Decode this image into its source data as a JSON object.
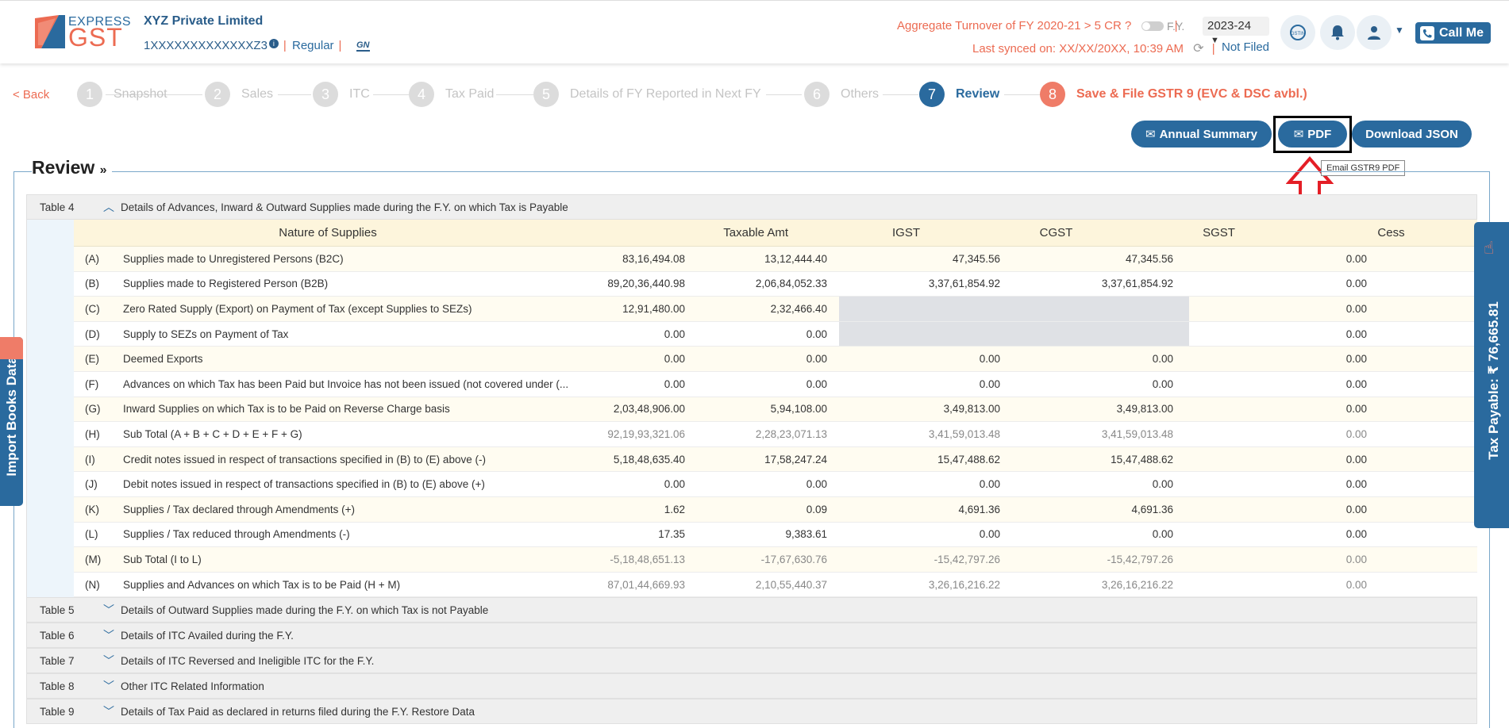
{
  "header": {
    "logo_express": "EXPRESS",
    "logo_gst": "GST",
    "company_name": "XYZ Private Limited",
    "gstin": "1XXXXXXXXXXXXXZ3",
    "taxpayer_type": "Regular",
    "turnover_text": "Aggregate Turnover of FY 2020-21 > 5 CR ?",
    "fy_label": "F.Y.",
    "fy_value": "2023-24",
    "last_synced": "Last synced on: XX/XX/20XX, 10:39 AM",
    "status": "Not Filed",
    "call_me": "Call Me"
  },
  "nav": {
    "back": "< Back",
    "steps": [
      {
        "num": "1",
        "label": "Snapshot"
      },
      {
        "num": "2",
        "label": "Sales"
      },
      {
        "num": "3",
        "label": "ITC"
      },
      {
        "num": "4",
        "label": "Tax Paid"
      },
      {
        "num": "5",
        "label": "Details of FY Reported in Next FY"
      },
      {
        "num": "6",
        "label": "Others"
      },
      {
        "num": "7",
        "label": "Review"
      },
      {
        "num": "8",
        "label": "Save & File GSTR 9 (EVC & DSC avbl.)"
      }
    ]
  },
  "actions": {
    "annual_summary": "Annual Summary",
    "pdf": "PDF",
    "download_json": "Download JSON",
    "tooltip": "Email GSTR9 PDF"
  },
  "review": {
    "title": "Review",
    "table4": {
      "num": "Table 4",
      "title": "Details of Advances, Inward & Outward Supplies made during the F.Y. on which Tax is Payable",
      "columns": [
        "Nature of Supplies",
        "Taxable Amt",
        "IGST",
        "CGST",
        "SGST",
        "Cess"
      ],
      "rows": [
        {
          "code": "(A)",
          "desc": "Supplies made to Unregistered Persons (B2C)",
          "tax": "83,16,494.08",
          "igst": "13,12,444.40",
          "cgst": "47,345.56",
          "sgst": "47,345.56",
          "cess": "0.00"
        },
        {
          "code": "(B)",
          "desc": "Supplies made to Registered Person (B2B)",
          "tax": "89,20,36,440.98",
          "igst": "2,06,84,052.33",
          "cgst": "3,37,61,854.92",
          "sgst": "3,37,61,854.92",
          "cess": "0.00"
        },
        {
          "code": "(C)",
          "desc": "Zero Rated Supply (Export) on Payment of Tax (except Supplies to SEZs)",
          "tax": "12,91,480.00",
          "igst": "2,32,466.40",
          "cgst": "",
          "sgst": "",
          "cess": "0.00"
        },
        {
          "code": "(D)",
          "desc": "Supply to SEZs on Payment of Tax",
          "tax": "0.00",
          "igst": "0.00",
          "cgst": "",
          "sgst": "",
          "cess": "0.00"
        },
        {
          "code": "(E)",
          "desc": "Deemed Exports",
          "tax": "0.00",
          "igst": "0.00",
          "cgst": "0.00",
          "sgst": "0.00",
          "cess": "0.00"
        },
        {
          "code": "(F)",
          "desc": "Advances on which Tax has been Paid but Invoice has not been issued (not covered under (...",
          "tax": "0.00",
          "igst": "0.00",
          "cgst": "0.00",
          "sgst": "0.00",
          "cess": "0.00"
        },
        {
          "code": "(G)",
          "desc": "Inward Supplies on which Tax is to be Paid on Reverse Charge basis",
          "tax": "2,03,48,906.00",
          "igst": "5,94,108.00",
          "cgst": "3,49,813.00",
          "sgst": "3,49,813.00",
          "cess": "0.00"
        },
        {
          "code": "(H)",
          "desc": "Sub Total (A + B + C + D + E + F + G)",
          "tax": "92,19,93,321.06",
          "igst": "2,28,23,071.13",
          "cgst": "3,41,59,013.48",
          "sgst": "3,41,59,013.48",
          "cess": "0.00"
        },
        {
          "code": "(I)",
          "desc": "Credit notes issued in respect of transactions specified in (B) to (E) above (-)",
          "tax": "5,18,48,635.40",
          "igst": "17,58,247.24",
          "cgst": "15,47,488.62",
          "sgst": "15,47,488.62",
          "cess": "0.00"
        },
        {
          "code": "(J)",
          "desc": "Debit notes issued in respect of transactions specified in (B) to (E) above (+)",
          "tax": "0.00",
          "igst": "0.00",
          "cgst": "0.00",
          "sgst": "0.00",
          "cess": "0.00"
        },
        {
          "code": "(K)",
          "desc": "Supplies / Tax declared through Amendments (+)",
          "tax": "1.62",
          "igst": "0.09",
          "cgst": "4,691.36",
          "sgst": "4,691.36",
          "cess": "0.00"
        },
        {
          "code": "(L)",
          "desc": "Supplies / Tax reduced through Amendments (-)",
          "tax": "17.35",
          "igst": "9,383.61",
          "cgst": "0.00",
          "sgst": "0.00",
          "cess": "0.00"
        },
        {
          "code": "(M)",
          "desc": "Sub Total (I to L)",
          "tax": "-5,18,48,651.13",
          "igst": "-17,67,630.76",
          "cgst": "-15,42,797.26",
          "sgst": "-15,42,797.26",
          "cess": "0.00"
        },
        {
          "code": "(N)",
          "desc": "Supplies and Advances on which Tax is to be Paid (H + M)",
          "tax": "87,01,44,669.93",
          "igst": "2,10,55,440.37",
          "cgst": "3,26,16,216.22",
          "sgst": "3,26,16,216.22",
          "cess": "0.00"
        }
      ]
    },
    "other_tables": [
      {
        "num": "Table 5",
        "title": "Details of Outward Supplies made during the F.Y. on which Tax is not Payable"
      },
      {
        "num": "Table 6",
        "title": "Details of ITC Availed during the F.Y."
      },
      {
        "num": "Table 7",
        "title": "Details of ITC Reversed and Ineligible ITC for the F.Y."
      },
      {
        "num": "Table 8",
        "title": "Other ITC Related Information"
      },
      {
        "num": "Table 9",
        "title": "Details of Tax Paid as declared in returns filed during the F.Y. Restore Data"
      }
    ]
  },
  "side": {
    "import_books": "Import Books Data",
    "tax_payable": "Tax Payable: ₹ 76,665.81"
  },
  "colors": {
    "primary": "#2a6a9e",
    "accent": "#ec6b52",
    "step_inactive": "#dcdcdc",
    "row_alt": "#fffcf1",
    "col_header": "#fdf5dc"
  }
}
